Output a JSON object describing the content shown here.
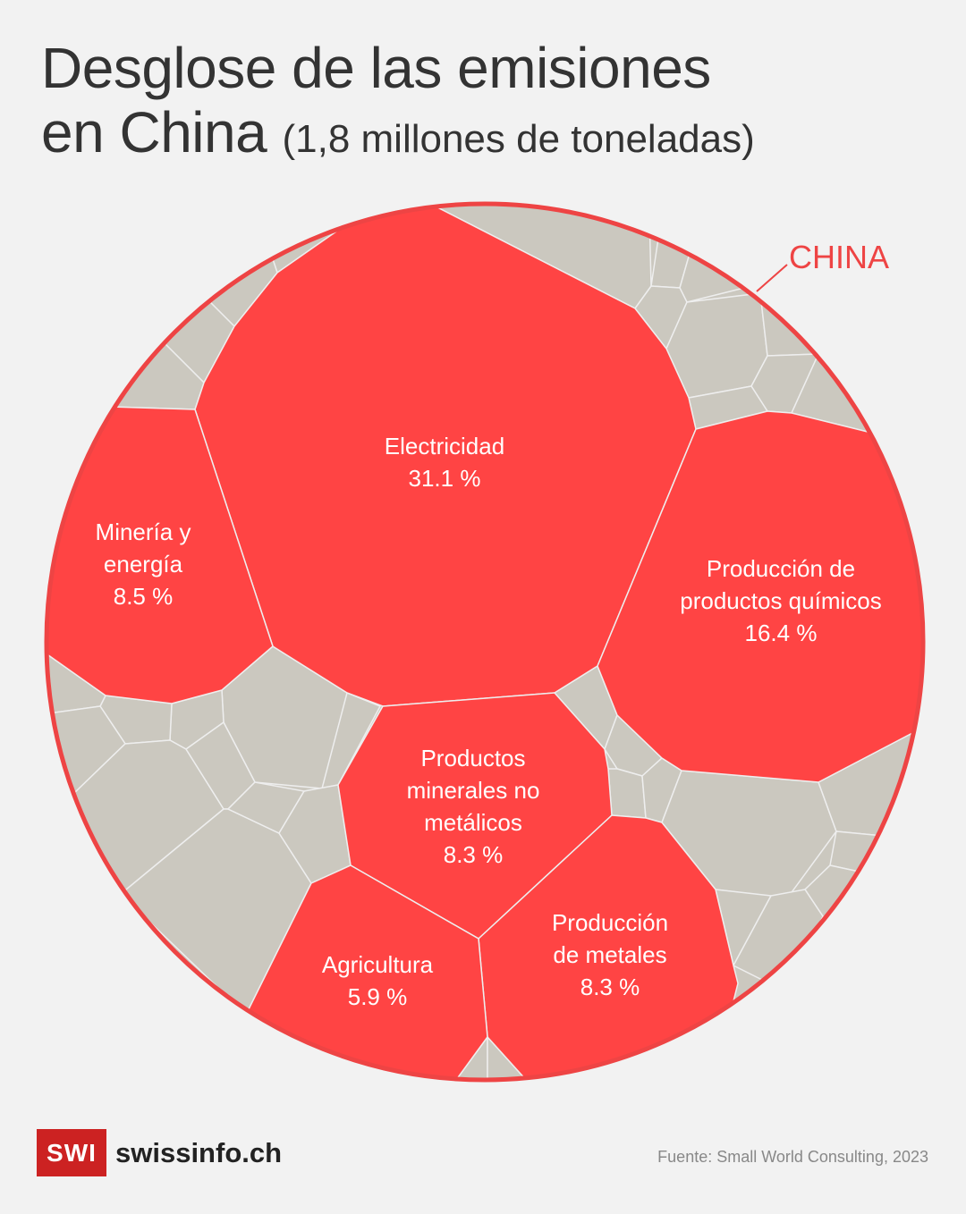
{
  "title": {
    "line1": "Desglose de las emisiones",
    "line2": "en China",
    "subtitle": "(1,8 millones de toneladas)"
  },
  "colors": {
    "background": "#f2f2f2",
    "highlight": "#ff4444",
    "other": "#cbc8bf",
    "border": "#ee4444",
    "text_on_red": "#ffffff",
    "title": "#333333"
  },
  "chart_data": {
    "type": "voronoi-treemap",
    "region_label": "CHINA",
    "unit": "%",
    "segments": [
      {
        "name": "Electricidad",
        "label_lines": [
          "Electricidad"
        ],
        "value": 31.1,
        "value_label": "31.1 %"
      },
      {
        "name": "Producción de productos químicos",
        "label_lines": [
          "Producción de",
          "productos químicos"
        ],
        "value": 16.4,
        "value_label": "16.4 %"
      },
      {
        "name": "Minería y energía",
        "label_lines": [
          "Minería y",
          "energía"
        ],
        "value": 8.5,
        "value_label": "8.5 %"
      },
      {
        "name": "Productos minerales no metálicos",
        "label_lines": [
          "Productos",
          "minerales no",
          "metálicos"
        ],
        "value": 8.3,
        "value_label": "8.3 %"
      },
      {
        "name": "Producción de metales",
        "label_lines": [
          "Producción",
          "de metales"
        ],
        "value": 8.3,
        "value_label": "8.3 %"
      },
      {
        "name": "Agricultura",
        "label_lines": [
          "Agricultura"
        ],
        "value": 5.9,
        "value_label": "5.9 %"
      }
    ]
  },
  "footer": {
    "logo_badge": "SWI",
    "logo_text": "swissinfo.ch",
    "source": "Fuente: Small World Consulting, 2023"
  }
}
